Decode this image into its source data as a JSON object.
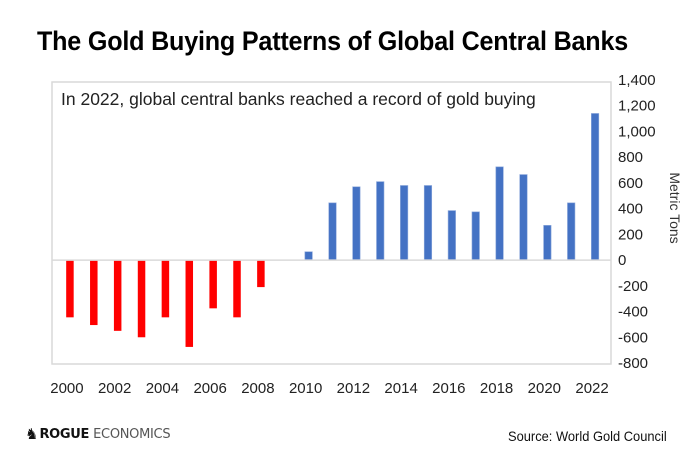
{
  "header": {
    "title": "The Gold Buying Patterns of Global Central Banks"
  },
  "footer": {
    "brand_primary": "ROGUE",
    "brand_secondary": "ECONOMICS",
    "logo_icon": "chess-knight-icon",
    "source": "Source: World Gold Council"
  },
  "colors": {
    "negative": "#FF0000",
    "positive": "#4472C4",
    "plot_border": "#D9D9D9"
  },
  "chart_data": {
    "type": "bar",
    "title": "The Gold Buying Patterns of Global Central Banks",
    "annotation": "In 2022, global central banks reached a record of gold buying",
    "xlabel": "",
    "ylabel": "Metric Tons",
    "y_axis_position": "right",
    "ylim": [
      -800,
      1400
    ],
    "yticks": [
      1400,
      1200,
      1000,
      800,
      600,
      400,
      200,
      0,
      -200,
      -400,
      -600,
      -800
    ],
    "ytick_labels": [
      "1,400",
      "1,200",
      "1,000",
      "800",
      "600",
      "400",
      "200",
      "0",
      "-200",
      "-400",
      "-600",
      "-800"
    ],
    "categories": [
      "2000",
      "2001",
      "2002",
      "2003",
      "2004",
      "2005",
      "2006",
      "2007",
      "2008",
      "2009",
      "2010",
      "2011",
      "2012",
      "2013",
      "2014",
      "2015",
      "2016",
      "2017",
      "2018",
      "2019",
      "2020",
      "2021",
      "2022"
    ],
    "xtick_labels": [
      "2000",
      "2002",
      "2004",
      "2006",
      "2008",
      "2010",
      "2012",
      "2014",
      "2016",
      "2018",
      "2020",
      "2022"
    ],
    "values": [
      -445,
      -505,
      -550,
      -600,
      -445,
      -675,
      -375,
      -445,
      -210,
      0,
      65,
      445,
      570,
      610,
      580,
      580,
      385,
      375,
      725,
      665,
      270,
      445,
      1140
    ],
    "grid": false,
    "legend": "none"
  }
}
